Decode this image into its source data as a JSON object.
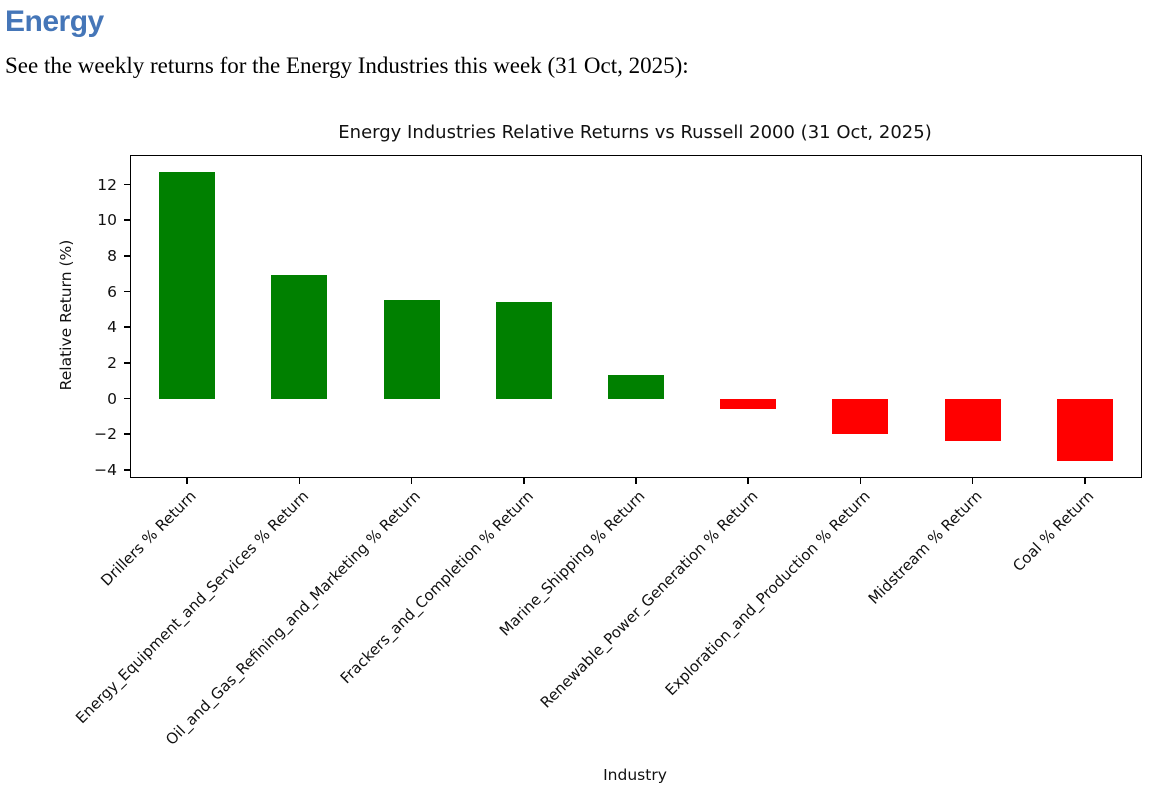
{
  "page": {
    "heading": "Energy",
    "intro": "See the weekly returns for the Energy Industries this week (31 Oct, 2025):"
  },
  "chart_data": {
    "type": "bar",
    "title": "Energy Industries Relative Returns vs Russell 2000 (31 Oct, 2025)",
    "xlabel": "Industry",
    "ylabel": "Relative Return (%)",
    "categories": [
      "Drillers % Return",
      "Energy_Equipment_and_Services % Return",
      "Oil_and_Gas_Refining_and_Marketing % Return",
      "Frackers_and_Completion % Return",
      "Marine_Shipping % Return",
      "Renewable_Power_Generation % Return",
      "Exploration_and_Production % Return",
      "Midstream % Return",
      "Coal % Return"
    ],
    "values": [
      12.7,
      6.9,
      5.5,
      5.4,
      1.3,
      -0.6,
      -2.0,
      -2.4,
      -3.5
    ],
    "ylim": [
      -4.4,
      13.6
    ],
    "yticks": [
      -4,
      -2,
      0,
      2,
      4,
      6,
      8,
      10,
      12
    ],
    "positive_color": "#008000",
    "negative_color": "#ff0000",
    "bar_width_fraction": 0.5,
    "grid": false,
    "legend": "none"
  }
}
